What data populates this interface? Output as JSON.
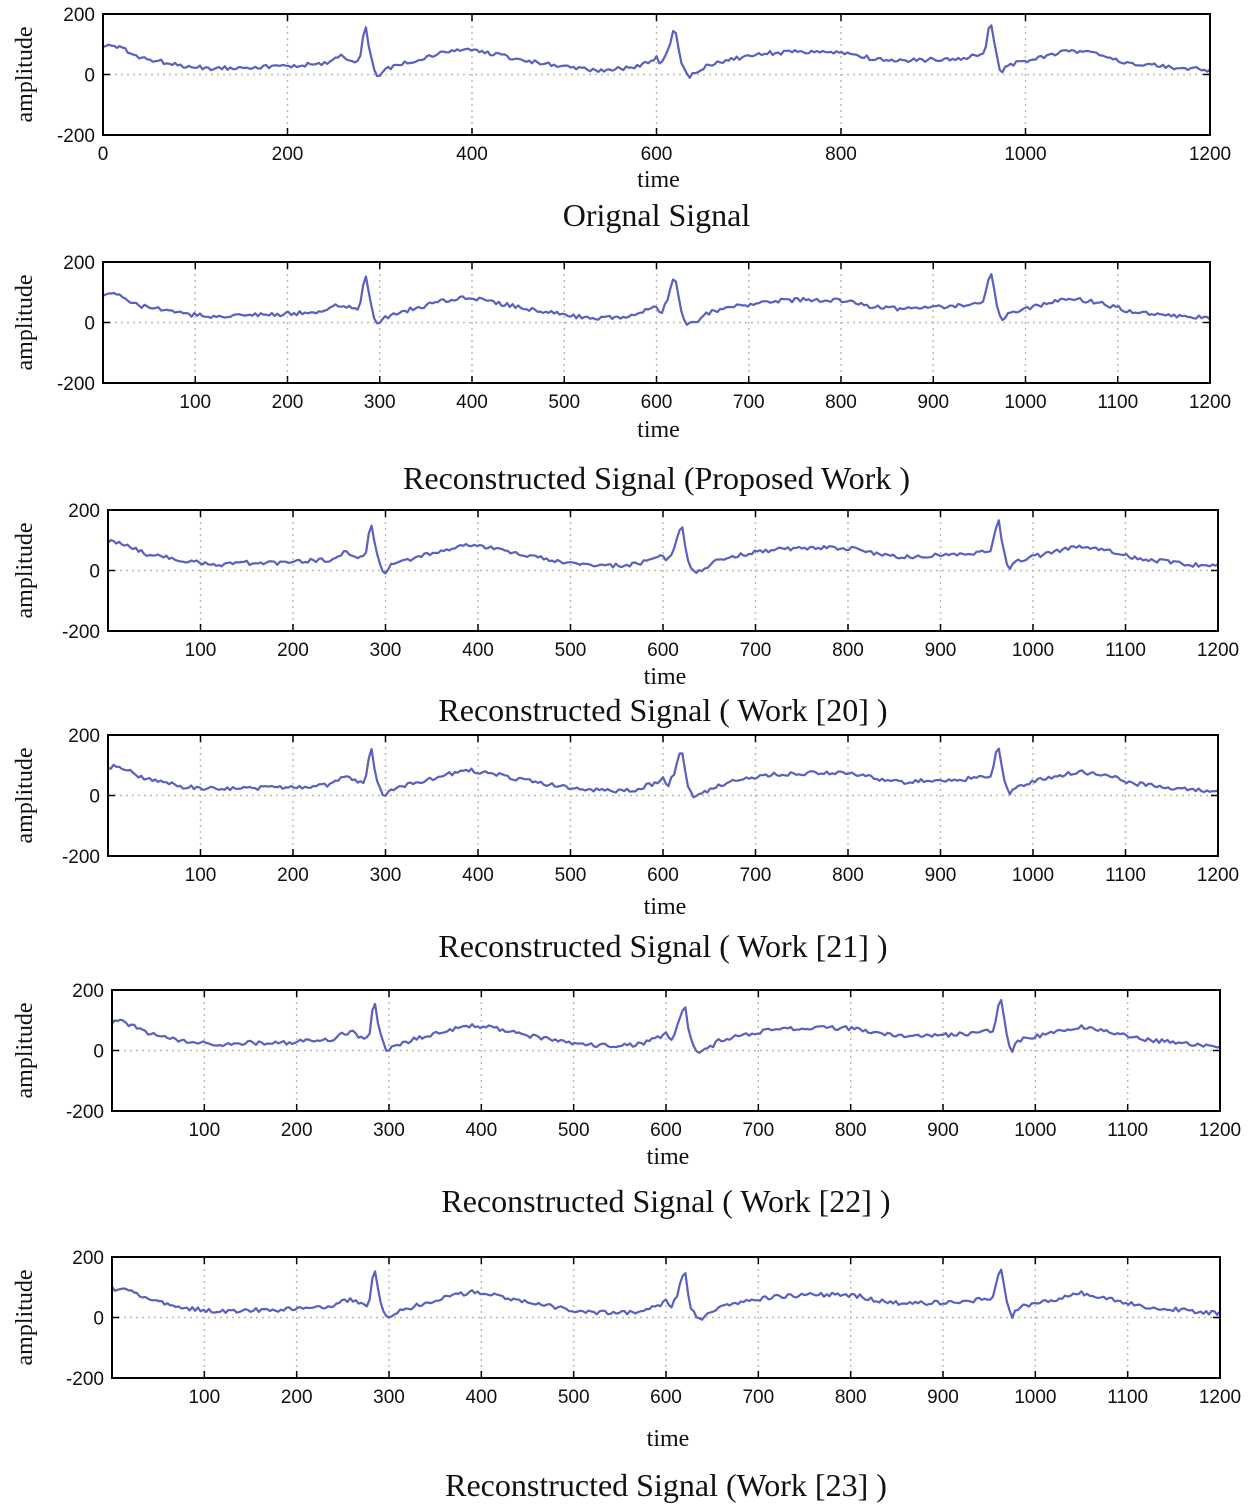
{
  "figure": {
    "xlabel": "time",
    "ylabel": "amplitude",
    "colors": {
      "signal": "#5a5fc0",
      "axis": "#000000",
      "grid": "#b8b8b8"
    }
  },
  "chart_data": [
    {
      "type": "line",
      "title": "Orignal Signal",
      "xlabel": "time",
      "ylabel": "amplitude",
      "xlim": [
        0,
        1200
      ],
      "ylim": [
        -200,
        200
      ],
      "xticks": [
        0,
        200,
        400,
        600,
        800,
        1000,
        1200
      ],
      "yticks": [
        -200,
        0,
        200
      ],
      "grid": true,
      "series": [
        {
          "x": [
            0,
            10,
            25,
            40,
            60,
            80,
            100,
            120,
            150,
            180,
            210,
            240,
            250,
            260,
            270,
            278,
            284,
            290,
            296,
            300,
            305,
            330,
            360,
            390,
            420,
            450,
            480,
            510,
            540,
            570,
            595,
            600,
            605,
            612,
            620,
            626,
            634,
            640,
            646,
            650,
            655,
            680,
            720,
            760,
            790,
            810,
            830,
            860,
            900,
            930,
            950,
            955,
            962,
            968,
            974,
            978,
            985,
            1000,
            1020,
            1050,
            1080,
            1110,
            1140,
            1170,
            1200
          ],
          "values": [
            95,
            95,
            80,
            55,
            45,
            30,
            25,
            20,
            25,
            25,
            30,
            35,
            55,
            60,
            45,
            40,
            170,
            60,
            0,
            -5,
            15,
            40,
            65,
            85,
            70,
            50,
            35,
            20,
            15,
            20,
            45,
            55,
            30,
            75,
            160,
            40,
            -10,
            0,
            10,
            15,
            30,
            50,
            70,
            75,
            75,
            70,
            55,
            45,
            50,
            55,
            65,
            65,
            180,
            70,
            -5,
            20,
            35,
            45,
            60,
            80,
            65,
            40,
            30,
            20,
            15
          ]
        }
      ]
    },
    {
      "type": "line",
      "title": "Reconstructed Signal (Proposed Work )",
      "xlabel": "time",
      "ylabel": "amplitude",
      "xlim": [
        0,
        1200
      ],
      "ylim": [
        -200,
        200
      ],
      "xticks": [
        100,
        200,
        300,
        400,
        500,
        600,
        700,
        800,
        900,
        1000,
        1100,
        1200
      ],
      "yticks": [
        -200,
        0,
        200
      ],
      "grid": true,
      "series": [
        {
          "x": [
            0,
            10,
            25,
            40,
            60,
            80,
            100,
            120,
            150,
            180,
            210,
            240,
            250,
            260,
            270,
            278,
            284,
            290,
            296,
            300,
            305,
            330,
            360,
            390,
            420,
            450,
            480,
            510,
            540,
            570,
            595,
            600,
            605,
            612,
            620,
            626,
            634,
            640,
            646,
            650,
            655,
            680,
            720,
            760,
            790,
            810,
            830,
            860,
            900,
            930,
            950,
            955,
            962,
            968,
            974,
            978,
            985,
            1000,
            1020,
            1050,
            1080,
            1110,
            1140,
            1170,
            1200
          ],
          "values": [
            95,
            95,
            80,
            55,
            45,
            30,
            25,
            20,
            25,
            25,
            30,
            35,
            55,
            60,
            45,
            40,
            170,
            60,
            0,
            -5,
            15,
            40,
            65,
            85,
            70,
            50,
            35,
            20,
            15,
            20,
            45,
            55,
            30,
            75,
            160,
            40,
            -10,
            0,
            10,
            15,
            30,
            50,
            70,
            75,
            75,
            70,
            55,
            45,
            50,
            55,
            65,
            65,
            180,
            70,
            -5,
            20,
            35,
            45,
            60,
            80,
            65,
            40,
            30,
            20,
            15
          ]
        }
      ]
    },
    {
      "type": "line",
      "title": "Reconstructed Signal ( Work [20] )",
      "xlabel": "time",
      "ylabel": "amplitude",
      "xlim": [
        0,
        1200
      ],
      "ylim": [
        -200,
        200
      ],
      "xticks": [
        100,
        200,
        300,
        400,
        500,
        600,
        700,
        800,
        900,
        1000,
        1100,
        1200
      ],
      "yticks": [
        -200,
        0,
        200
      ],
      "grid": true,
      "series": [
        {
          "x": [
            0,
            10,
            25,
            40,
            60,
            80,
            100,
            120,
            150,
            180,
            210,
            240,
            250,
            260,
            270,
            278,
            284,
            290,
            296,
            300,
            305,
            330,
            360,
            390,
            420,
            450,
            480,
            510,
            540,
            570,
            595,
            600,
            605,
            612,
            620,
            626,
            634,
            640,
            646,
            650,
            655,
            680,
            720,
            760,
            790,
            810,
            830,
            860,
            900,
            930,
            950,
            955,
            962,
            968,
            974,
            978,
            985,
            1000,
            1020,
            1050,
            1080,
            1110,
            1140,
            1170,
            1200
          ],
          "values": [
            95,
            95,
            80,
            55,
            45,
            30,
            25,
            20,
            25,
            25,
            30,
            35,
            55,
            60,
            45,
            40,
            170,
            60,
            0,
            -5,
            15,
            40,
            65,
            85,
            70,
            50,
            35,
            20,
            15,
            20,
            45,
            55,
            30,
            75,
            160,
            40,
            -10,
            0,
            10,
            15,
            30,
            50,
            70,
            75,
            75,
            70,
            55,
            45,
            50,
            55,
            65,
            65,
            180,
            70,
            -5,
            20,
            35,
            45,
            60,
            80,
            65,
            40,
            30,
            20,
            15
          ]
        }
      ]
    },
    {
      "type": "line",
      "title": "Reconstructed Signal ( Work [21] )",
      "xlabel": "time",
      "ylabel": "amplitude",
      "xlim": [
        0,
        1200
      ],
      "ylim": [
        -200,
        200
      ],
      "xticks": [
        100,
        200,
        300,
        400,
        500,
        600,
        700,
        800,
        900,
        1000,
        1100,
        1200
      ],
      "yticks": [
        -200,
        0,
        200
      ],
      "grid": true,
      "series": [
        {
          "x": [
            0,
            10,
            25,
            40,
            60,
            80,
            100,
            120,
            150,
            180,
            210,
            240,
            250,
            260,
            270,
            278,
            284,
            290,
            296,
            300,
            305,
            330,
            360,
            390,
            420,
            450,
            480,
            510,
            540,
            570,
            595,
            600,
            605,
            612,
            620,
            626,
            634,
            640,
            646,
            650,
            655,
            680,
            720,
            760,
            790,
            810,
            830,
            860,
            900,
            930,
            950,
            955,
            962,
            968,
            974,
            978,
            985,
            1000,
            1020,
            1050,
            1080,
            1110,
            1140,
            1170,
            1200
          ],
          "values": [
            95,
            95,
            80,
            55,
            45,
            30,
            25,
            20,
            25,
            25,
            30,
            35,
            55,
            60,
            45,
            40,
            170,
            60,
            0,
            -5,
            15,
            40,
            65,
            85,
            70,
            50,
            35,
            20,
            15,
            20,
            45,
            55,
            30,
            75,
            160,
            40,
            -10,
            0,
            10,
            15,
            30,
            50,
            70,
            75,
            75,
            70,
            55,
            45,
            50,
            55,
            65,
            65,
            180,
            70,
            -5,
            20,
            35,
            45,
            60,
            80,
            65,
            40,
            30,
            20,
            15
          ]
        }
      ]
    },
    {
      "type": "line",
      "title": "Reconstructed Signal ( Work [22] )",
      "xlabel": "time",
      "ylabel": "amplitude",
      "xlim": [
        0,
        1200
      ],
      "ylim": [
        -200,
        200
      ],
      "xticks": [
        100,
        200,
        300,
        400,
        500,
        600,
        700,
        800,
        900,
        1000,
        1100,
        1200
      ],
      "yticks": [
        -200,
        0,
        200
      ],
      "grid": true,
      "series": [
        {
          "x": [
            0,
            10,
            25,
            40,
            60,
            80,
            100,
            120,
            150,
            180,
            210,
            240,
            250,
            260,
            270,
            278,
            284,
            290,
            296,
            300,
            305,
            330,
            360,
            390,
            420,
            450,
            480,
            510,
            540,
            570,
            595,
            600,
            605,
            612,
            620,
            626,
            634,
            640,
            646,
            650,
            655,
            680,
            720,
            760,
            790,
            810,
            830,
            860,
            900,
            930,
            950,
            955,
            962,
            968,
            974,
            978,
            985,
            1000,
            1020,
            1050,
            1080,
            1110,
            1140,
            1170,
            1200
          ],
          "values": [
            95,
            95,
            80,
            55,
            45,
            30,
            25,
            20,
            25,
            25,
            30,
            35,
            55,
            60,
            45,
            40,
            170,
            60,
            0,
            -5,
            15,
            40,
            65,
            85,
            70,
            50,
            35,
            20,
            15,
            20,
            45,
            55,
            30,
            75,
            160,
            40,
            -10,
            0,
            10,
            15,
            30,
            50,
            70,
            75,
            75,
            70,
            55,
            45,
            50,
            55,
            65,
            65,
            180,
            70,
            -5,
            20,
            35,
            45,
            60,
            80,
            65,
            40,
            30,
            20,
            15
          ]
        }
      ]
    },
    {
      "type": "line",
      "title": "Reconstructed Signal (Work [23] )",
      "xlabel": "time",
      "ylabel": "amplitude",
      "xlim": [
        0,
        1200
      ],
      "ylim": [
        -200,
        200
      ],
      "xticks": [
        100,
        200,
        300,
        400,
        500,
        600,
        700,
        800,
        900,
        1000,
        1100,
        1200
      ],
      "yticks": [
        -200,
        0,
        200
      ],
      "grid": true,
      "series": [
        {
          "x": [
            0,
            10,
            25,
            40,
            60,
            80,
            100,
            120,
            150,
            180,
            210,
            240,
            250,
            260,
            270,
            278,
            284,
            290,
            296,
            300,
            305,
            330,
            360,
            390,
            420,
            450,
            480,
            510,
            540,
            570,
            595,
            600,
            605,
            612,
            620,
            626,
            634,
            640,
            646,
            650,
            655,
            680,
            720,
            760,
            790,
            810,
            830,
            860,
            900,
            930,
            950,
            955,
            962,
            968,
            974,
            978,
            985,
            1000,
            1020,
            1050,
            1080,
            1110,
            1140,
            1170,
            1200
          ],
          "values": [
            95,
            95,
            80,
            55,
            45,
            30,
            25,
            20,
            25,
            25,
            30,
            35,
            55,
            60,
            45,
            40,
            170,
            60,
            0,
            -5,
            15,
            40,
            65,
            85,
            70,
            50,
            35,
            20,
            15,
            20,
            45,
            55,
            30,
            75,
            160,
            40,
            -10,
            0,
            10,
            15,
            30,
            50,
            70,
            75,
            75,
            70,
            55,
            45,
            50,
            55,
            65,
            65,
            180,
            70,
            -5,
            20,
            35,
            45,
            60,
            80,
            65,
            40,
            30,
            20,
            15
          ]
        }
      ]
    }
  ]
}
